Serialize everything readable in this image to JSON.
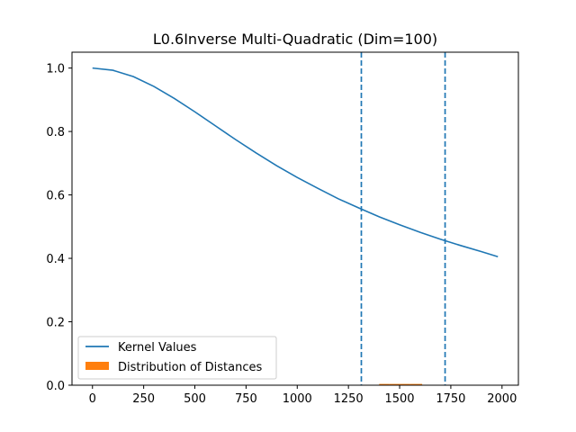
{
  "chart_data": {
    "type": "line",
    "title": "L0.6Inverse Multi-Quadratic (Dim=100)",
    "xlabel": "",
    "ylabel": "",
    "xlim": [
      -100,
      2080
    ],
    "ylim": [
      0.0,
      1.05
    ],
    "x_ticks": [
      0,
      250,
      500,
      750,
      1000,
      1250,
      1500,
      1750,
      2000
    ],
    "x_tick_labels": [
      "0",
      "250",
      "500",
      "750",
      "1000",
      "1250",
      "1500",
      "1750",
      "2000"
    ],
    "y_ticks": [
      0.0,
      0.2,
      0.4,
      0.6,
      0.8,
      1.0
    ],
    "y_tick_labels": [
      "0.0",
      "0.2",
      "0.4",
      "0.6",
      "0.8",
      "1.0"
    ],
    "grid": false,
    "legend_position": "lower-left",
    "series": [
      {
        "name": "Kernel Values",
        "kind": "line",
        "color": "#1f77b4",
        "x": [
          0,
          100,
          200,
          300,
          400,
          500,
          600,
          700,
          800,
          900,
          1000,
          1100,
          1200,
          1300,
          1400,
          1500,
          1600,
          1700,
          1800,
          1900,
          1980
        ],
        "y": [
          1.0,
          0.993,
          0.973,
          0.942,
          0.904,
          0.862,
          0.818,
          0.774,
          0.732,
          0.692,
          0.655,
          0.621,
          0.588,
          0.559,
          0.531,
          0.506,
          0.482,
          0.46,
          0.44,
          0.421,
          0.405
        ]
      },
      {
        "name": "Distribution of Distances",
        "kind": "histogram",
        "color": "#ff7f0e",
        "bins": [
          1400,
          1450,
          1500,
          1550,
          1610
        ],
        "values": [
          0.004,
          0.004,
          0.004,
          0.004
        ]
      }
    ],
    "vlines": [
      {
        "x": 1313,
        "color": "#1f77b4",
        "style": "dashed"
      },
      {
        "x": 1722,
        "color": "#1f77b4",
        "style": "dashed"
      }
    ]
  }
}
